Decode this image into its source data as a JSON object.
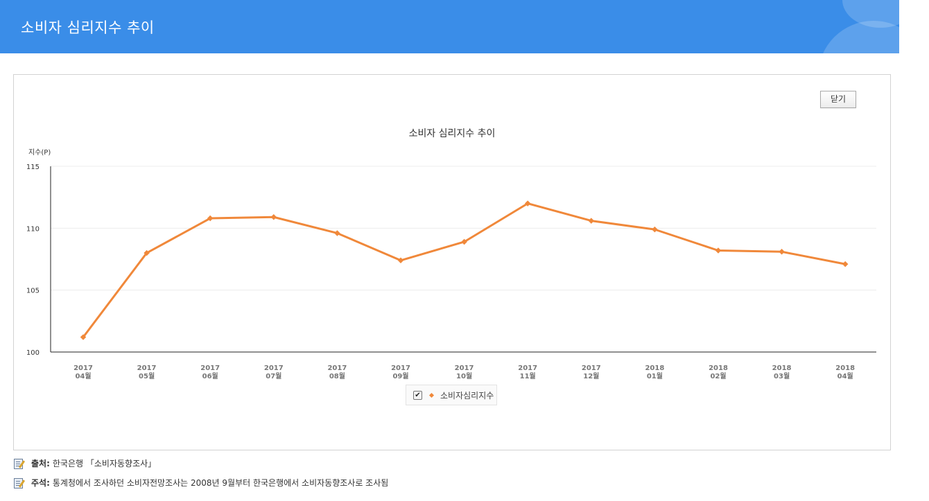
{
  "header": {
    "title": "소비자 심리지수 추이"
  },
  "panel": {
    "close_label": "닫기"
  },
  "chart_data": {
    "type": "line",
    "title": "소비자 심리지수 추이",
    "ylabel": "지수(P)",
    "xlabel": "",
    "categories": [
      [
        "2017",
        "04월"
      ],
      [
        "2017",
        "05월"
      ],
      [
        "2017",
        "06월"
      ],
      [
        "2017",
        "07월"
      ],
      [
        "2017",
        "08월"
      ],
      [
        "2017",
        "09월"
      ],
      [
        "2017",
        "10월"
      ],
      [
        "2017",
        "11월"
      ],
      [
        "2017",
        "12월"
      ],
      [
        "2018",
        "01월"
      ],
      [
        "2018",
        "02월"
      ],
      [
        "2018",
        "03월"
      ],
      [
        "2018",
        "04월"
      ]
    ],
    "series": [
      {
        "name": "소비자심리지수",
        "color": "#f0883a",
        "values": [
          101.2,
          108.0,
          110.8,
          110.9,
          109.6,
          107.4,
          108.9,
          112.0,
          110.6,
          109.9,
          108.2,
          108.1,
          107.1
        ]
      }
    ],
    "ylim": [
      100,
      115
    ],
    "yticks": [
      100,
      105,
      110,
      115
    ],
    "grid": true,
    "legend_position": "bottom"
  },
  "footnotes": [
    {
      "key": "출처:",
      "text": "한국은행 「소비자동향조사」"
    },
    {
      "key": "주석:",
      "text": "통계청에서 조사하던 소비자전망조사는 2008년 9월부터 한국은행에서 소비자동향조사로 조사됨"
    }
  ]
}
